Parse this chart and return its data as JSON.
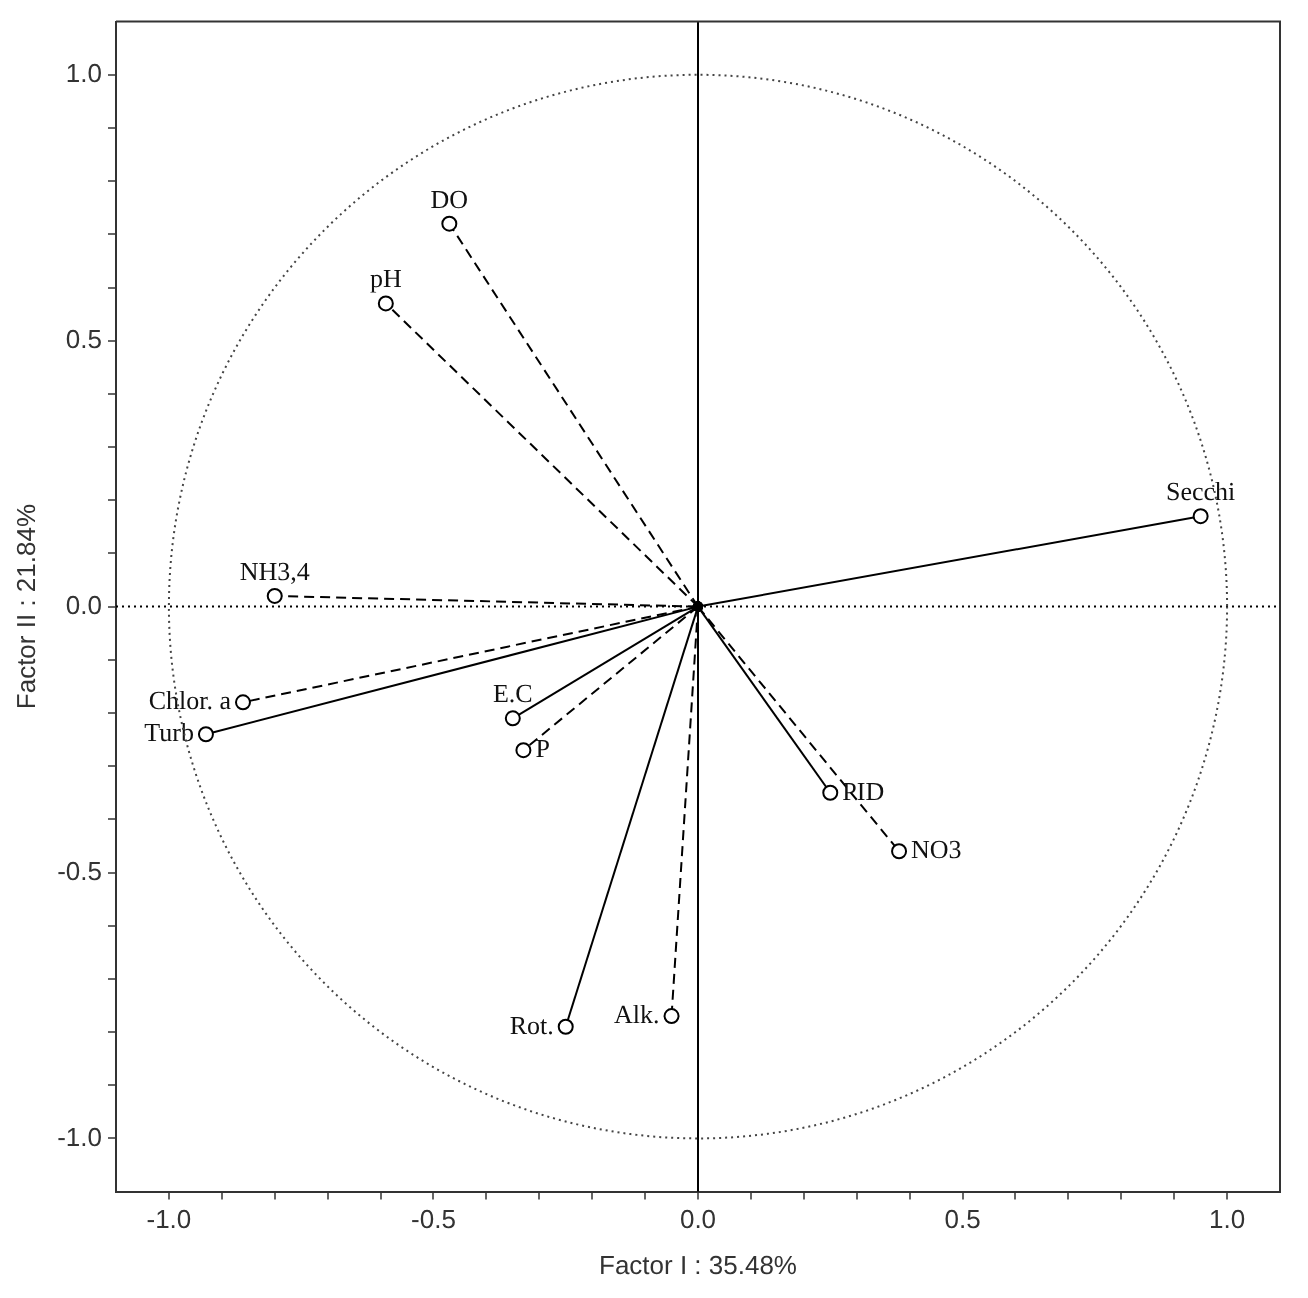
{
  "chart_data": {
    "type": "line",
    "xlabel": "Factor I : 35.48%",
    "ylabel": "Factor II : 21.84%",
    "xlim": [
      -1.1,
      1.1
    ],
    "ylim": [
      -1.1,
      1.1
    ],
    "xticks": [
      {
        "value": -1.0,
        "label": "-1.0"
      },
      {
        "value": -0.9,
        "label": null
      },
      {
        "value": -0.8,
        "label": null
      },
      {
        "value": -0.7,
        "label": null
      },
      {
        "value": -0.6,
        "label": null
      },
      {
        "value": -0.5,
        "label": "-0.5"
      },
      {
        "value": -0.4,
        "label": null
      },
      {
        "value": -0.3,
        "label": null
      },
      {
        "value": -0.2,
        "label": null
      },
      {
        "value": -0.1,
        "label": null
      },
      {
        "value": 0,
        "label": "0.0"
      },
      {
        "value": 0.1,
        "label": null
      },
      {
        "value": 0.2,
        "label": null
      },
      {
        "value": 0.3,
        "label": null
      },
      {
        "value": 0.4,
        "label": null
      },
      {
        "value": 0.5,
        "label": "0.5"
      },
      {
        "value": 0.6,
        "label": null
      },
      {
        "value": 0.7,
        "label": null
      },
      {
        "value": 0.8,
        "label": null
      },
      {
        "value": 0.9,
        "label": null
      },
      {
        "value": 1.0,
        "label": "1.0"
      }
    ],
    "yticks": [
      {
        "value": -1.0,
        "label": "-1.0"
      },
      {
        "value": -0.9,
        "label": null
      },
      {
        "value": -0.8,
        "label": null
      },
      {
        "value": -0.7,
        "label": null
      },
      {
        "value": -0.6,
        "label": null
      },
      {
        "value": -0.5,
        "label": "-0.5"
      },
      {
        "value": -0.4,
        "label": null
      },
      {
        "value": -0.3,
        "label": null
      },
      {
        "value": -0.2,
        "label": null
      },
      {
        "value": -0.1,
        "label": null
      },
      {
        "value": 0,
        "label": "0.0"
      },
      {
        "value": 0.1,
        "label": null
      },
      {
        "value": 0.2,
        "label": null
      },
      {
        "value": 0.3,
        "label": null
      },
      {
        "value": 0.4,
        "label": null
      },
      {
        "value": 0.5,
        "label": "0.5"
      },
      {
        "value": 0.6,
        "label": null
      },
      {
        "value": 0.7,
        "label": null
      },
      {
        "value": 0.8,
        "label": null
      },
      {
        "value": 0.9,
        "label": null
      },
      {
        "value": 1.0,
        "label": "1.0"
      }
    ],
    "grid": false,
    "legend": false,
    "marker": "circle",
    "ref_lines": [
      {
        "axis": "x",
        "value": 0,
        "label": null,
        "color": "#000000",
        "line_style": "solid"
      },
      {
        "axis": "y",
        "value": 0,
        "label": null,
        "color": "#000000",
        "line_style": "dotted"
      }
    ],
    "series": [
      {
        "name": "DO",
        "color": "#000000",
        "line_style": "dashed",
        "x": [
          0,
          -0.47
        ],
        "values": [
          0,
          0.72
        ]
      },
      {
        "name": "pH",
        "color": "#000000",
        "line_style": "dashed",
        "x": [
          0,
          -0.59
        ],
        "values": [
          0,
          0.57
        ]
      },
      {
        "name": "NH3,4",
        "color": "#000000",
        "line_style": "dashed",
        "x": [
          0,
          -0.8
        ],
        "values": [
          0,
          0.02
        ]
      },
      {
        "name": "Chlor. a",
        "color": "#000000",
        "line_style": "dashed",
        "x": [
          0,
          -0.86
        ],
        "values": [
          0,
          -0.18
        ]
      },
      {
        "name": "Turb",
        "color": "#000000",
        "line_style": "solid",
        "x": [
          0,
          -0.93
        ],
        "values": [
          0,
          -0.24
        ]
      },
      {
        "name": "E.C",
        "color": "#000000",
        "line_style": "solid",
        "x": [
          0,
          -0.35
        ],
        "values": [
          0,
          -0.21
        ]
      },
      {
        "name": "P",
        "color": "#000000",
        "line_style": "dashed",
        "x": [
          0,
          -0.33
        ],
        "values": [
          0,
          -0.27
        ]
      },
      {
        "name": "Rot.",
        "color": "#000000",
        "line_style": "solid",
        "x": [
          0,
          -0.25
        ],
        "values": [
          0,
          -0.79
        ]
      },
      {
        "name": "Alk.",
        "color": "#000000",
        "line_style": "dashed",
        "x": [
          0,
          -0.05
        ],
        "values": [
          0,
          -0.77
        ]
      },
      {
        "name": "Secchi",
        "color": "#000000",
        "line_style": "solid",
        "x": [
          0,
          0.95
        ],
        "values": [
          0,
          0.17
        ]
      },
      {
        "name": "PID",
        "color": "#000000",
        "line_style": "solid",
        "x": [
          0,
          0.25
        ],
        "values": [
          0,
          -0.35
        ]
      },
      {
        "name": "NO3",
        "color": "#000000",
        "line_style": "dashed",
        "x": [
          0,
          0.38
        ],
        "values": [
          0,
          -0.46
        ]
      }
    ]
  }
}
